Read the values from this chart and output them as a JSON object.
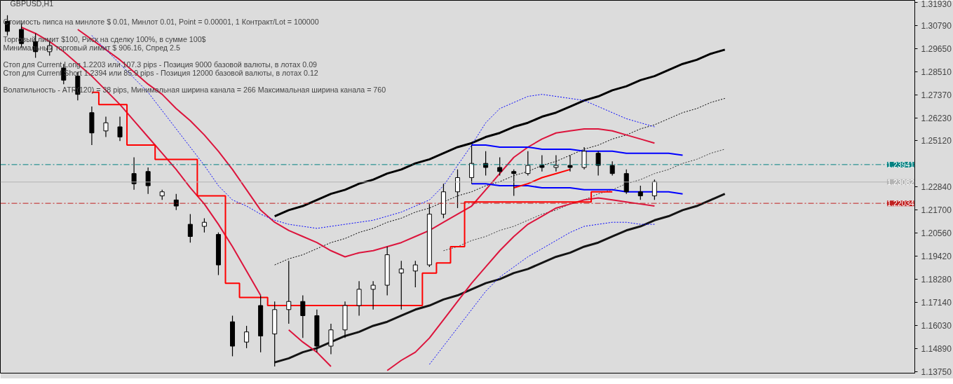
{
  "chart_data": {
    "type": "candlestick",
    "title": "GBPUSD,H1",
    "annotations": [
      "Стоимость пипса на минлоте  $ 0.01,   Минлот 0.01,  Point = 0.00001,  1 Контракт/Lot = 100000",
      "Торговый лимит  $100, Риск на сделку 100%,  в сумме 100$",
      "Минимальный  торговый лимит  $ 906.16,   Спред  2.5",
      "Стоп для Current Long  1.2203  или  107.3 pips -  Позиция 9000 базовой валюты,  в лотах 0.09",
      "Стоп для Current Short 1.2394  или  85.9 pips -  Позиция 12000 базовой валюты,  в лотах 0.12",
      "Волатильность  - ATR(120) = 38 pips,  Минимальная ширина канала = 266    Максимальная ширина канала = 760"
    ],
    "color": "#000000",
    "categories": [
      null,
      null,
      null,
      null,
      null,
      null,
      null,
      null,
      null,
      null,
      null,
      null,
      null,
      null,
      null,
      null,
      null,
      null,
      null,
      null,
      null,
      null,
      null,
      null,
      null,
      null,
      null,
      null,
      null,
      null,
      null,
      null,
      null,
      null,
      null,
      null,
      null,
      null,
      null,
      null,
      null,
      null,
      null,
      null,
      null,
      null,
      null,
      null,
      null,
      null,
      null,
      null,
      null,
      null,
      null,
      null,
      null,
      null,
      null,
      null,
      null,
      null,
      null,
      null,
      null
    ],
    "ohlc": [
      [
        1.31,
        1.313,
        1.303,
        1.305
      ],
      [
        1.306,
        1.309,
        1.297,
        1.299
      ],
      [
        1.3,
        1.304,
        1.292,
        1.295
      ],
      [
        1.295,
        1.3,
        1.293,
        1.298
      ],
      [
        1.287,
        1.289,
        1.279,
        1.281
      ],
      [
        1.283,
        1.285,
        1.271,
        1.274
      ],
      [
        1.265,
        1.268,
        1.249,
        1.255
      ],
      [
        1.256,
        1.263,
        1.253,
        1.26
      ],
      [
        1.258,
        1.263,
        1.251,
        1.253
      ],
      [
        1.235,
        1.243,
        1.227,
        1.23
      ],
      [
        1.236,
        1.238,
        1.225,
        1.229
      ],
      [
        1.224,
        1.227,
        1.222,
        1.226
      ],
      [
        1.222,
        1.225,
        1.217,
        1.219
      ],
      [
        1.21,
        1.215,
        1.201,
        1.204
      ],
      [
        1.209,
        1.213,
        1.206,
        1.211
      ],
      [
        1.205,
        1.206,
        1.185,
        1.19
      ],
      [
        1.162,
        1.165,
        1.145,
        1.15
      ],
      [
        1.152,
        1.16,
        1.149,
        1.157
      ],
      [
        1.17,
        1.175,
        1.147,
        1.155
      ],
      [
        1.156,
        1.172,
        1.14,
        1.168
      ],
      [
        1.168,
        1.192,
        1.161,
        1.172
      ],
      [
        1.172,
        1.175,
        1.154,
        1.165
      ],
      [
        1.165,
        1.168,
        1.147,
        1.15
      ],
      [
        1.15,
        1.161,
        1.146,
        1.158
      ],
      [
        1.158,
        1.172,
        1.154,
        1.17
      ],
      [
        1.17,
        1.182,
        1.165,
        1.178
      ],
      [
        1.178,
        1.182,
        1.168,
        1.18
      ],
      [
        1.18,
        1.199,
        1.175,
        1.195
      ],
      [
        1.186,
        1.192,
        1.168,
        1.188
      ],
      [
        1.187,
        1.192,
        1.179,
        1.19
      ],
      [
        1.19,
        1.22,
        1.189,
        1.215
      ],
      [
        1.215,
        1.23,
        1.213,
        1.226
      ],
      [
        1.226,
        1.237,
        1.218,
        1.233
      ],
      [
        1.233,
        1.249,
        1.23,
        1.24
      ],
      [
        1.24,
        1.246,
        1.234,
        1.238
      ],
      [
        1.238,
        1.243,
        1.234,
        1.236
      ],
      [
        1.236,
        1.237,
        1.224,
        1.235
      ],
      [
        1.235,
        1.246,
        1.234,
        1.239
      ],
      [
        1.239,
        1.244,
        1.236,
        1.238
      ],
      [
        1.238,
        1.244,
        1.236,
        1.239
      ],
      [
        1.239,
        1.244,
        1.236,
        1.238
      ],
      [
        1.238,
        1.248,
        1.237,
        1.246
      ],
      [
        1.245,
        1.246,
        1.234,
        1.239
      ],
      [
        1.239,
        1.241,
        1.234,
        1.235
      ],
      [
        1.235,
        1.237,
        1.225,
        1.226
      ],
      [
        1.226,
        1.229,
        1.222,
        1.224
      ],
      [
        1.224,
        1.232,
        1.222,
        1.231
      ],
      null,
      null,
      null,
      null,
      null,
      null,
      null,
      null,
      null,
      null,
      null,
      null,
      null,
      null,
      null,
      null,
      null,
      null
    ],
    "series": [
      {
        "type": "line",
        "color": "#000000",
        "line_style": "solid",
        "values": [
          null,
          null,
          null,
          null,
          null,
          null,
          null,
          null,
          null,
          null,
          null,
          null,
          null,
          null,
          null,
          null,
          null,
          null,
          null,
          1.214,
          1.217,
          1.219,
          1.222,
          1.225,
          1.227,
          1.23,
          1.232,
          1.235,
          1.237,
          1.24,
          1.242,
          1.245,
          1.248,
          1.25,
          1.253,
          1.255,
          1.258,
          1.26,
          1.263,
          1.265,
          1.268,
          1.271,
          1.273,
          1.276,
          1.278,
          1.281,
          1.283,
          1.286,
          1.289,
          1.291,
          1.294,
          1.296,
          null,
          null,
          null,
          null,
          null,
          null,
          null,
          null,
          null,
          null,
          null,
          null,
          null
        ]
      },
      {
        "type": "line",
        "color": "#141414",
        "line_style": "solid",
        "values": [
          null,
          null,
          null,
          null,
          null,
          null,
          null,
          null,
          null,
          null,
          null,
          null,
          null,
          null,
          null,
          null,
          null,
          null,
          null,
          1.142,
          1.144,
          1.147,
          1.149,
          1.152,
          1.155,
          1.157,
          1.16,
          1.162,
          1.165,
          1.168,
          1.17,
          1.173,
          1.175,
          1.178,
          1.181,
          1.183,
          1.186,
          1.188,
          1.191,
          1.194,
          1.196,
          1.199,
          1.201,
          1.204,
          1.207,
          1.209,
          1.212,
          1.214,
          1.217,
          1.219,
          1.222,
          1.225,
          null,
          null,
          null,
          null,
          null,
          null,
          null,
          null,
          null,
          null,
          null,
          null,
          null
        ]
      },
      {
        "type": "line",
        "color": "#000000",
        "line_style": "dotted",
        "values": [
          null,
          null,
          null,
          null,
          null,
          null,
          null,
          null,
          null,
          null,
          null,
          null,
          null,
          null,
          null,
          null,
          null,
          null,
          null,
          1.19,
          1.193,
          1.195,
          1.198,
          1.201,
          1.203,
          1.206,
          1.208,
          1.211,
          1.213,
          1.216,
          1.218,
          1.221,
          1.224,
          1.226,
          1.229,
          1.231,
          1.234,
          1.236,
          1.239,
          1.241,
          1.244,
          1.247,
          1.249,
          1.252,
          1.254,
          1.257,
          1.259,
          1.262,
          1.265,
          1.267,
          1.27,
          1.272,
          null,
          null,
          null,
          null,
          null,
          null,
          null,
          null,
          null,
          null,
          null,
          null,
          null
        ]
      },
      {
        "type": "line",
        "color": "#3c3c3c",
        "line_style": "dotted",
        "values": [
          null,
          null,
          null,
          null,
          null,
          null,
          null,
          null,
          null,
          null,
          null,
          null,
          null,
          null,
          null,
          null,
          null,
          null,
          null,
          null,
          null,
          null,
          null,
          null,
          null,
          null,
          null,
          null,
          null,
          null,
          null,
          1.197,
          1.199,
          1.202,
          1.204,
          1.207,
          1.209,
          1.212,
          1.215,
          1.217,
          1.22,
          1.222,
          1.225,
          1.227,
          1.23,
          1.232,
          1.235,
          1.237,
          1.24,
          1.242,
          1.245,
          1.247,
          null,
          null,
          null,
          null,
          null,
          null,
          null,
          null,
          null,
          null,
          null,
          null,
          null
        ]
      },
      {
        "type": "line",
        "color": "#dc143c",
        "line_style": "solid",
        "values": [
          null,
          null,
          null,
          null,
          null,
          1.306,
          1.301,
          1.296,
          1.291,
          1.285,
          1.279,
          1.274,
          1.267,
          1.261,
          1.254,
          1.246,
          1.237,
          1.227,
          1.217,
          1.211,
          1.207,
          1.204,
          1.201,
          1.197,
          1.194,
          1.196,
          1.197,
          1.199,
          1.201,
          1.204,
          1.207,
          1.211,
          1.215,
          1.219,
          1.227,
          1.235,
          1.243,
          1.248,
          1.252,
          1.255,
          1.256,
          1.257,
          1.257,
          1.256,
          1.254,
          1.252,
          1.25,
          null,
          null,
          null,
          null,
          null,
          null,
          null,
          null,
          null,
          null,
          null,
          null,
          null,
          null,
          null,
          null,
          null,
          null
        ]
      },
      {
        "type": "line",
        "color": "#dc143c",
        "line_style": "solid",
        "values": [
          null,
          1.307,
          1.304,
          1.3,
          1.295,
          1.289,
          1.283,
          1.276,
          1.269,
          1.261,
          1.253,
          1.245,
          1.237,
          1.228,
          1.22,
          1.21,
          1.199,
          1.187,
          1.175,
          null,
          1.158,
          1.152,
          1.147,
          1.14,
          null,
          null,
          null,
          1.138,
          1.143,
          1.147,
          1.154,
          1.163,
          1.172,
          1.181,
          1.189,
          1.197,
          1.204,
          1.21,
          1.214,
          1.218,
          1.22,
          1.222,
          1.223,
          1.222,
          1.221,
          1.22,
          1.219,
          null,
          null,
          null,
          null,
          null,
          null,
          null,
          null,
          null,
          null,
          null,
          null,
          null,
          null,
          null,
          null,
          null,
          null
        ]
      },
      {
        "type": "step",
        "color": "#ff0000",
        "line_style": "solid",
        "values": [
          null,
          null,
          null,
          null,
          null,
          null,
          1.275,
          1.269,
          1.269,
          1.249,
          1.249,
          1.242,
          1.242,
          1.242,
          1.224,
          1.224,
          1.181,
          1.174,
          1.174,
          1.17,
          1.17,
          1.17,
          1.17,
          1.17,
          1.17,
          1.17,
          1.17,
          1.17,
          1.17,
          1.17,
          1.186,
          1.191,
          1.199,
          1.221,
          1.221,
          1.221,
          1.221,
          1.221,
          1.221,
          1.221,
          1.221,
          1.221,
          1.226,
          1.226,
          null,
          null,
          null,
          null,
          null,
          null,
          null,
          null,
          null,
          null,
          null,
          null,
          null,
          null,
          null,
          null,
          null,
          null,
          null,
          null,
          null
        ]
      },
      {
        "type": "line",
        "color": "#0000ff",
        "line_style": "solid",
        "values": [
          null,
          null,
          null,
          null,
          null,
          null,
          null,
          null,
          null,
          null,
          null,
          null,
          null,
          null,
          null,
          null,
          null,
          null,
          null,
          null,
          null,
          null,
          null,
          null,
          null,
          null,
          null,
          null,
          null,
          null,
          null,
          null,
          null,
          1.249,
          1.249,
          1.248,
          1.248,
          1.248,
          1.247,
          1.247,
          1.247,
          1.246,
          1.246,
          1.246,
          1.245,
          1.245,
          1.245,
          1.245,
          1.244,
          null,
          null,
          null,
          null,
          null,
          null,
          null,
          null,
          null,
          null,
          null,
          null,
          null,
          null,
          null,
          null
        ]
      },
      {
        "type": "line",
        "color": "#0000ff",
        "line_style": "solid",
        "values": [
          null,
          null,
          null,
          null,
          null,
          null,
          null,
          null,
          null,
          null,
          null,
          null,
          null,
          null,
          null,
          null,
          null,
          null,
          null,
          null,
          null,
          null,
          null,
          null,
          null,
          null,
          null,
          null,
          null,
          null,
          null,
          null,
          null,
          1.23,
          1.23,
          1.229,
          1.229,
          1.229,
          1.228,
          1.228,
          1.228,
          1.227,
          1.227,
          1.227,
          1.226,
          1.226,
          1.226,
          1.226,
          1.225,
          null,
          null,
          null,
          null,
          null,
          null,
          null,
          null,
          null,
          null,
          null,
          null,
          null,
          null,
          null,
          null
        ]
      },
      {
        "type": "line",
        "color": "#ff0000",
        "line_style": "solid",
        "values": [
          null,
          null,
          null,
          null,
          null,
          null,
          null,
          null,
          null,
          null,
          null,
          null,
          null,
          null,
          null,
          null,
          null,
          null,
          null,
          null,
          null,
          null,
          null,
          null,
          null,
          null,
          null,
          null,
          null,
          null,
          null,
          null,
          null,
          null,
          null,
          null,
          1.228,
          1.23,
          1.233,
          1.235,
          1.237,
          null,
          null,
          null,
          null,
          null,
          null,
          null,
          null,
          null,
          null,
          null,
          null,
          null,
          null,
          null,
          null,
          null,
          null,
          null,
          null,
          null,
          null,
          null,
          null
        ]
      },
      {
        "type": "line",
        "color": "#0000ff",
        "line_style": "dotted",
        "values": [
          null,
          null,
          null,
          null,
          null,
          null,
          1.303,
          1.296,
          1.289,
          1.282,
          1.275,
          1.266,
          1.257,
          1.248,
          1.239,
          1.229,
          1.222,
          1.219,
          1.215,
          1.212,
          1.21,
          1.209,
          1.208,
          1.209,
          1.21,
          1.211,
          1.212,
          1.214,
          1.216,
          1.219,
          1.222,
          1.229,
          1.239,
          1.249,
          1.26,
          1.267,
          1.27,
          1.273,
          1.274,
          1.273,
          1.272,
          1.271,
          1.268,
          1.265,
          1.262,
          1.26,
          1.258,
          null,
          null,
          null,
          null,
          null,
          null,
          null,
          null,
          null,
          null,
          null,
          null,
          null,
          null,
          null,
          null,
          null,
          null
        ]
      },
      {
        "type": "line",
        "color": "#0000ff",
        "line_style": "dotted",
        "values": [
          null,
          null,
          null,
          null,
          null,
          null,
          null,
          null,
          null,
          null,
          null,
          null,
          null,
          null,
          null,
          null,
          null,
          null,
          null,
          null,
          null,
          null,
          null,
          null,
          null,
          null,
          null,
          null,
          null,
          null,
          1.141,
          1.15,
          1.159,
          1.168,
          1.177,
          1.184,
          1.189,
          1.194,
          1.198,
          1.202,
          1.206,
          1.209,
          1.21,
          1.211,
          1.211,
          1.21,
          1.21,
          null,
          null,
          null,
          null,
          null,
          null,
          null,
          null,
          null,
          null,
          null,
          null,
          null,
          null,
          null,
          null,
          null,
          null
        ]
      }
    ],
    "ref_lines": [
      {
        "axis": "y",
        "value": 1.23941,
        "label": "1.23941",
        "color": "#008080",
        "line_style": "dashdot"
      },
      {
        "axis": "y",
        "value": 1.22034,
        "label": "1.22034",
        "color": "#c02020",
        "line_style": "dashdot"
      },
      {
        "axis": "y",
        "value": 1.23082,
        "label": "1.23082",
        "color": "#b4b4b4",
        "line_style": "solid"
      }
    ],
    "ylim": [
      1.1367,
      1.3203
    ],
    "yticks": [
      {
        "value": 1.3193,
        "label": "1.31930"
      },
      {
        "value": 1.3079,
        "label": "1.30790"
      },
      {
        "value": 1.2965,
        "label": "1.29650"
      },
      {
        "value": 1.2851,
        "label": "1.28510"
      },
      {
        "value": 1.2737,
        "label": "1.27370"
      },
      {
        "value": 1.2623,
        "label": "1.26230"
      },
      {
        "value": 1.2512,
        "label": "1.25120"
      },
      {
        "value": 1.2284,
        "label": "1.22840"
      },
      {
        "value": 1.217,
        "label": "1.21700"
      },
      {
        "value": 1.2056,
        "label": "1.20560"
      },
      {
        "value": 1.1942,
        "label": "1.19420"
      },
      {
        "value": 1.1828,
        "label": "1.18280"
      },
      {
        "value": 1.1714,
        "label": "1.17140"
      },
      {
        "value": 1.1603,
        "label": "1.16030"
      },
      {
        "value": 1.1489,
        "label": "1.14890"
      },
      {
        "value": 1.1375,
        "label": "1.13750"
      }
    ],
    "tick_labels": "y",
    "grid": false
  }
}
